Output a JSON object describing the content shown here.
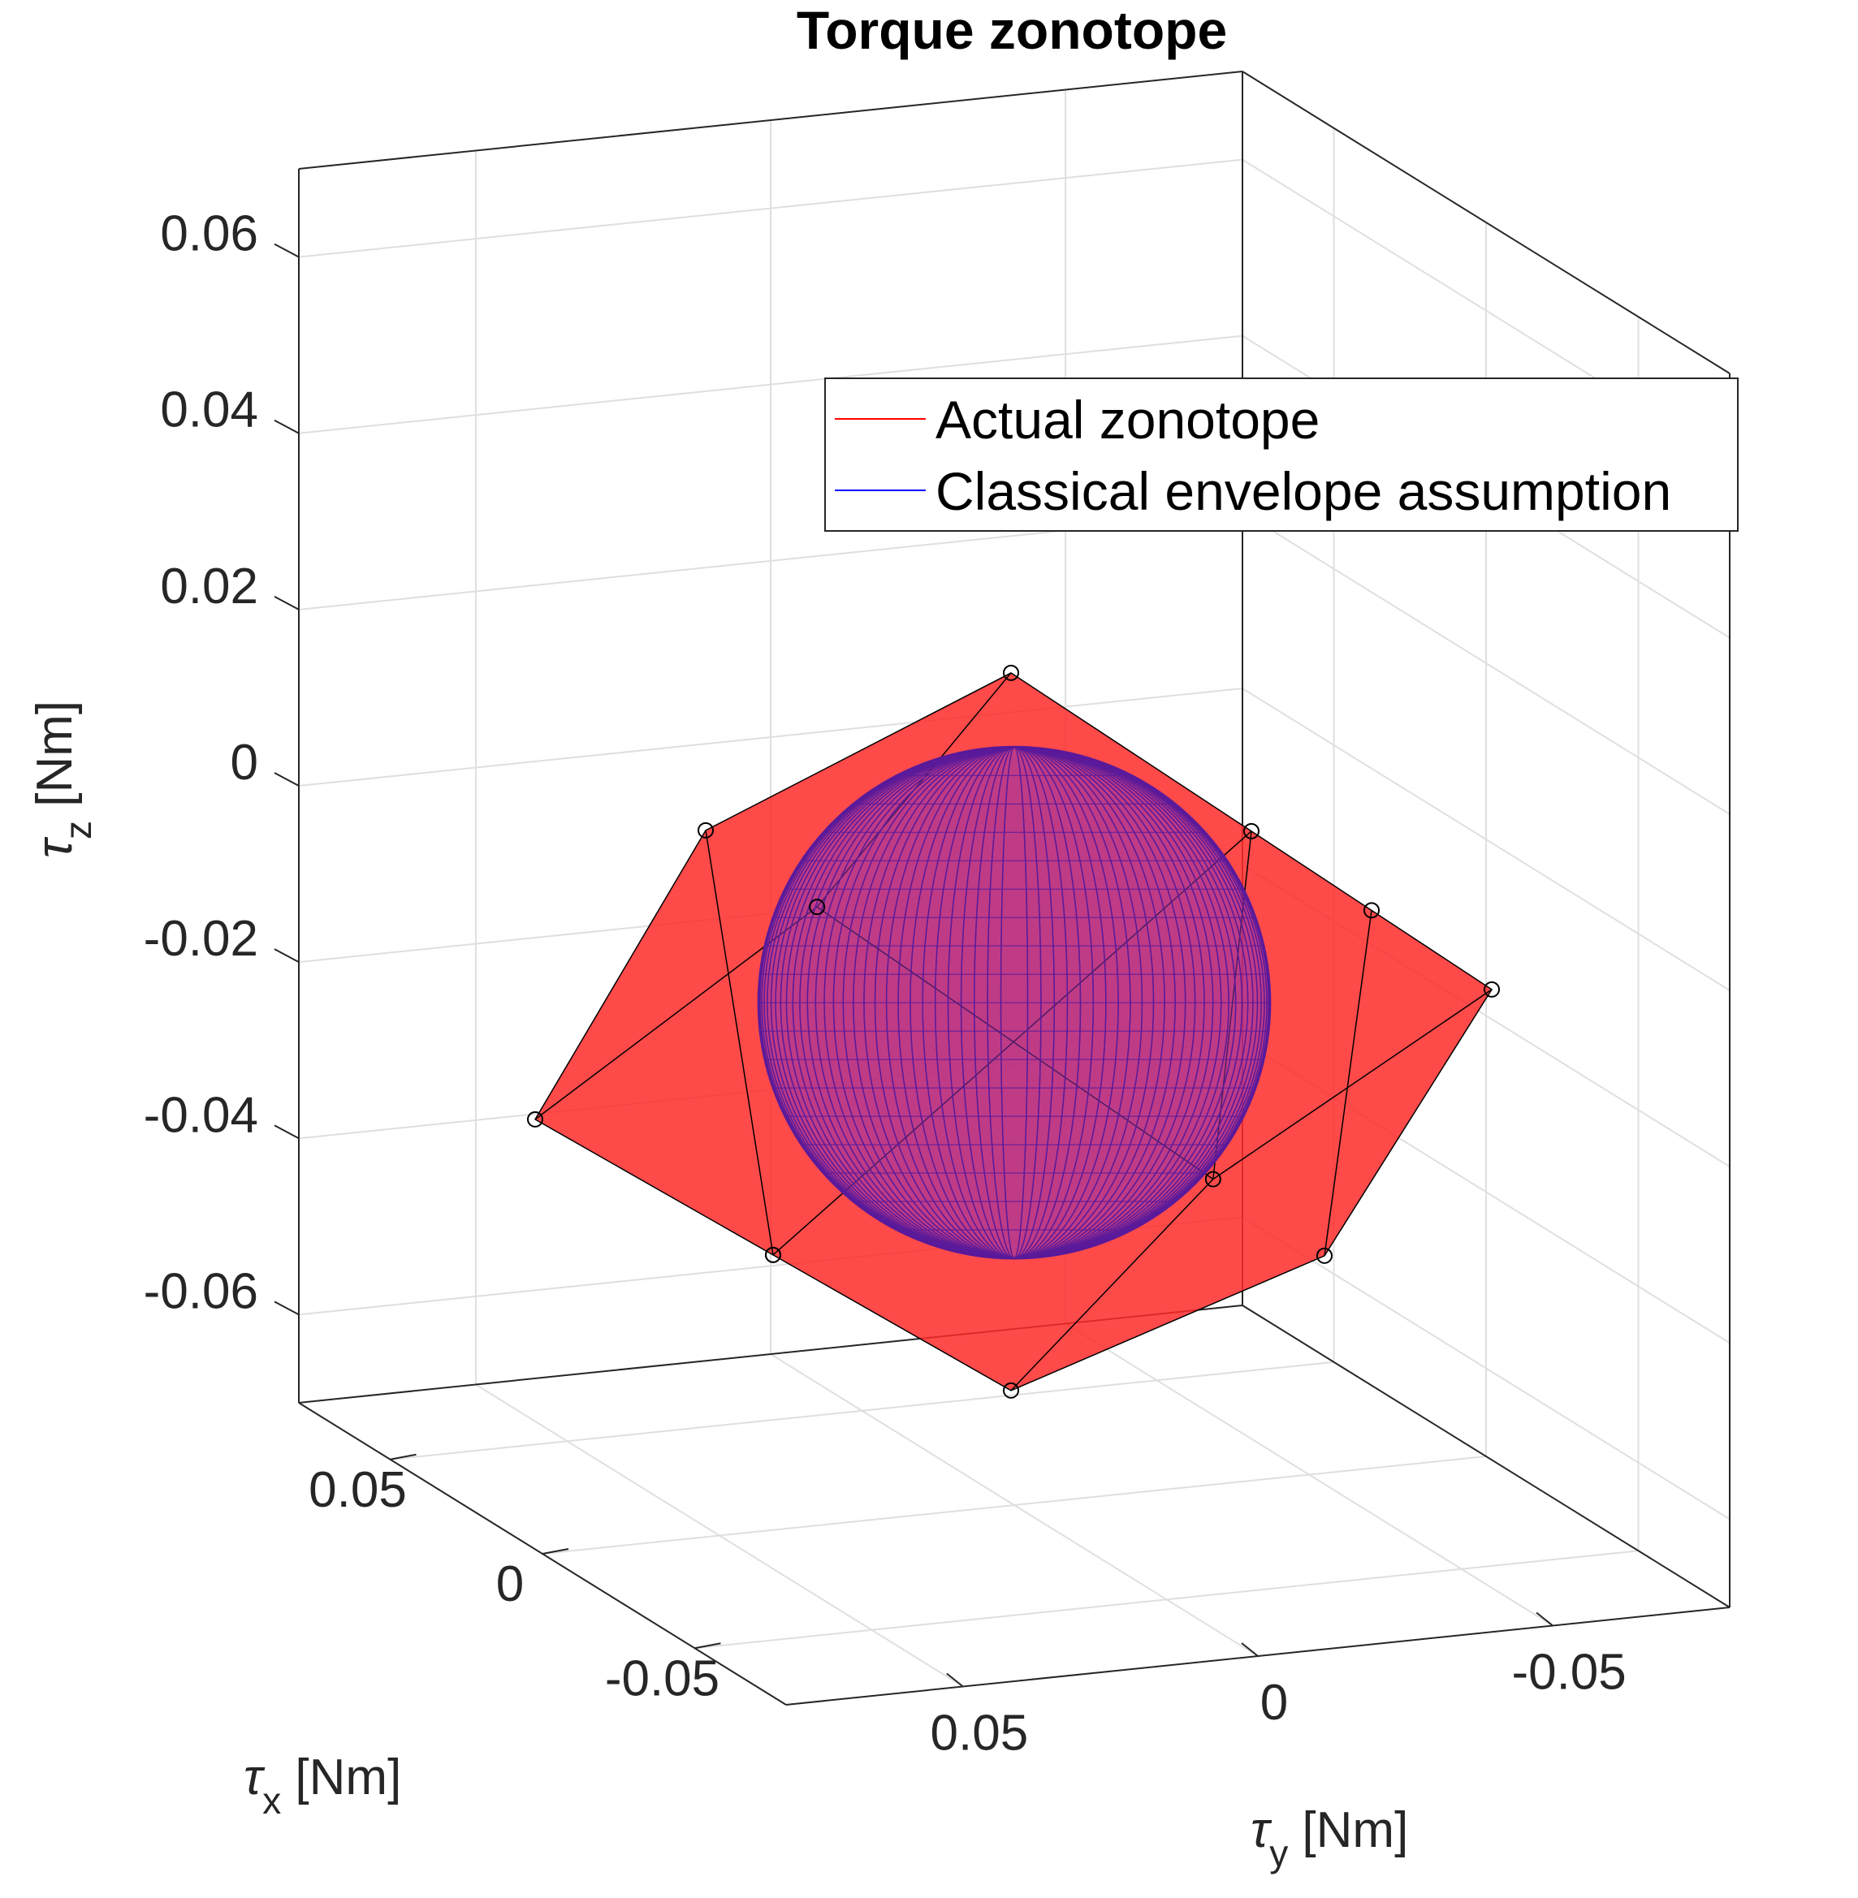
{
  "chart_data": {
    "type": "3d-surface",
    "title": "Torque zonotope",
    "xlabel": {
      "symbol": "τ",
      "sub": "x",
      "unit": " [Nm]"
    },
    "ylabel": {
      "symbol": "τ",
      "sub": "y",
      "unit": " [Nm]"
    },
    "zlabel": {
      "symbol": "τ",
      "sub": "z",
      "unit": " [Nm]"
    },
    "xlim": [
      -0.08,
      0.08
    ],
    "ylim": [
      -0.08,
      0.08
    ],
    "zlim": [
      -0.07,
      0.07
    ],
    "x_ticks": [
      -0.05,
      0,
      0.05
    ],
    "x_tick_labels": [
      "-0.05",
      "0",
      "0.05"
    ],
    "y_ticks": [
      -0.05,
      0,
      0.05
    ],
    "y_tick_labels": [
      "-0.05",
      "0",
      "0.05"
    ],
    "z_ticks": [
      -0.06,
      -0.04,
      -0.02,
      0,
      0.02,
      0.04,
      0.06
    ],
    "z_tick_labels": [
      "-0.06",
      "-0.04",
      "-0.02",
      "0",
      "0.02",
      "0.04",
      "0.06"
    ],
    "grid": true,
    "legend_position": "upper-right inside axes",
    "series": [
      {
        "name": "Actual zonotope",
        "color": "#ff0000",
        "kind": "polytope",
        "face_color": "#ff2a2a",
        "face_alpha": 0.85,
        "vertex_count": 12
      },
      {
        "name": "Classical envelope assumption",
        "color": "#0000ff",
        "kind": "sphere",
        "center": [
          0,
          0,
          -0.013
        ],
        "radius": 0.029,
        "mesh_color": "#5a1a9a"
      }
    ]
  }
}
